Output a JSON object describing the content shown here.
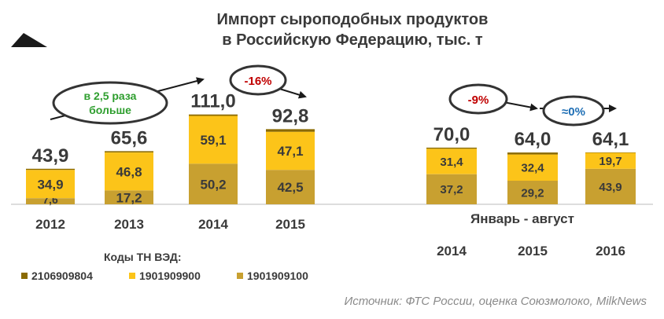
{
  "title_line1": "Импорт сыроподобных  продуктов",
  "title_line2": "в Российскую  Федерацию,  тыс. т",
  "legend_title": "Коды ТН ВЭД:",
  "source": "Источник: ФТС России, оценка Союзмолоко,  MilkNews",
  "period_label": "Январь - август",
  "colors": {
    "2106909804": "#8a6a00",
    "1901909900": "#fcc419",
    "1901909100": "#c8a030",
    "bubble_green": "#2e9e2e",
    "bubble_red": "#c00000",
    "bubble_blue": "#1f6fb5",
    "text": "#3a3a3a"
  },
  "annotations": [
    {
      "text_line1": "в 2,5 раза",
      "text_line2": "больше",
      "color_key": "bubble_green"
    },
    {
      "text_line1": "-16%",
      "text_line2": "",
      "color_key": "bubble_red"
    },
    {
      "text_line1": "-9%",
      "text_line2": "",
      "color_key": "bubble_red"
    },
    {
      "text_line1": "≈0%",
      "text_line2": "",
      "color_key": "bubble_blue"
    }
  ],
  "chart_data": [
    {
      "type": "bar",
      "stacked": true,
      "categories": [
        "2012",
        "2013",
        "2014",
        "2015"
      ],
      "series": [
        {
          "name": "1901909100",
          "values": [
            7.6,
            17.2,
            50.2,
            42.5
          ]
        },
        {
          "name": "1901909900",
          "values": [
            34.9,
            46.8,
            59.1,
            47.1
          ]
        },
        {
          "name": "2106909804",
          "values": [
            1.4,
            1.6,
            1.7,
            3.2
          ]
        }
      ],
      "labels": [
        [
          "7,6",
          "17,2",
          "50,2",
          "42,5"
        ],
        [
          "34,9",
          "46,8",
          "59,1",
          "47,1"
        ]
      ],
      "totals": [
        "43,9",
        "65,6",
        "111,0",
        "92,8"
      ],
      "legend": "bottom-left",
      "grid": false
    },
    {
      "type": "bar",
      "stacked": true,
      "categories": [
        "2014",
        "2015",
        "2016"
      ],
      "xlabel": "Январь - август",
      "series": [
        {
          "name": "1901909100",
          "values": [
            37.2,
            29.2,
            43.9
          ]
        },
        {
          "name": "1901909900",
          "values": [
            31.4,
            32.4,
            19.7
          ]
        },
        {
          "name": "2106909804",
          "values": [
            1.4,
            2.4,
            0.5
          ]
        }
      ],
      "labels": [
        [
          "37,2",
          "29,2",
          "43,9"
        ],
        [
          "31,4",
          "32,4",
          "19,7"
        ]
      ],
      "totals": [
        "70,0",
        "64,0",
        "64,1"
      ],
      "grid": false
    }
  ]
}
